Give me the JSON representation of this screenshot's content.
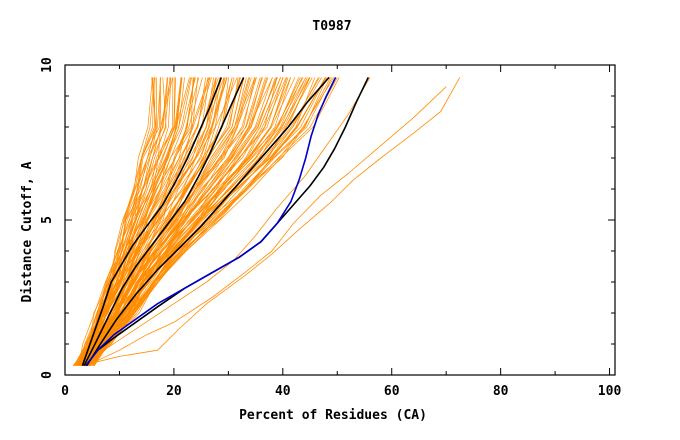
{
  "chart_data": {
    "type": "line",
    "title": "T0987",
    "xlabel": "Percent of Residues (CA)",
    "ylabel": "Distance Cutoff, A",
    "xlim": [
      0,
      101
    ],
    "ylim": [
      0,
      10
    ],
    "x_ticks": [
      "0",
      "20",
      "40",
      "60",
      "80",
      "100"
    ],
    "x_tick_values": [
      0,
      20,
      40,
      60,
      80,
      100
    ],
    "y_ticks": [
      "0",
      "5",
      "10"
    ],
    "y_tick_values": [
      0,
      5,
      10
    ],
    "grid": false,
    "legend": "none",
    "background_band": {
      "color": "#ff8c00",
      "count": 120,
      "description_free": true,
      "base_curve": {
        "y": [
          0.3,
          1,
          2,
          3,
          4,
          5,
          6,
          7,
          8,
          9.6
        ],
        "x": [
          2,
          4,
          6,
          8,
          9.5,
          11,
          12.5,
          14,
          15.5,
          16
        ]
      },
      "outer_curve": {
        "y": [
          0.3,
          1,
          2,
          3,
          4,
          5,
          6,
          7,
          8,
          9.6
        ],
        "x": [
          5,
          8,
          13,
          17,
          22,
          28,
          34,
          40,
          45,
          50
        ]
      }
    },
    "series": [
      {
        "color": "#ff8c00",
        "width": 0.8,
        "x": [
          3,
          10,
          17,
          21,
          26,
          33,
          38,
          43,
          49,
          53,
          58,
          64,
          69,
          72.5
        ],
        "y": [
          0.3,
          0.6,
          0.8,
          1.5,
          2.3,
          3.2,
          3.9,
          4.7,
          5.6,
          6.3,
          7.0,
          7.8,
          8.5,
          9.6
        ]
      },
      {
        "color": "#ff8c00",
        "width": 0.8,
        "x": [
          4,
          10,
          15,
          20,
          27,
          33,
          38,
          42,
          47,
          52,
          58,
          64,
          70
        ],
        "y": [
          0.3,
          0.8,
          1.3,
          1.7,
          2.5,
          3.3,
          4.0,
          4.9,
          5.8,
          6.5,
          7.4,
          8.3,
          9.3
        ]
      },
      {
        "color": "#ff8c00",
        "width": 0.8,
        "x": [
          3.5,
          8,
          14,
          20,
          26,
          31,
          35,
          39,
          44,
          48,
          52,
          56
        ],
        "y": [
          0.3,
          0.9,
          1.6,
          2.3,
          3.0,
          3.7,
          4.5,
          5.4,
          6.4,
          7.4,
          8.4,
          9.6
        ]
      },
      {
        "color": "#000000",
        "width": 1.6,
        "x": [
          3.2,
          5,
          7,
          8.5,
          10.5,
          12.5,
          15,
          18,
          20.5,
          22.5,
          24.5,
          26.5,
          28.7
        ],
        "y": [
          0.3,
          1.2,
          2.2,
          3.0,
          3.6,
          4.2,
          4.8,
          5.5,
          6.3,
          7.0,
          7.8,
          8.6,
          9.6
        ]
      },
      {
        "color": "#000000",
        "width": 1.6,
        "x": [
          3.5,
          5.5,
          8,
          10.5,
          13,
          16,
          19,
          22,
          24.5,
          26.5,
          28.5,
          30.5,
          32.8
        ],
        "y": [
          0.3,
          1.0,
          1.9,
          2.8,
          3.5,
          4.2,
          4.9,
          5.6,
          6.4,
          7.1,
          7.9,
          8.7,
          9.6
        ]
      },
      {
        "color": "#000000",
        "width": 1.6,
        "x": [
          4,
          6.5,
          9.5,
          13,
          17,
          21,
          25,
          29,
          33,
          37,
          41,
          44.5,
          48.5
        ],
        "y": [
          0.3,
          1.0,
          1.8,
          2.6,
          3.4,
          4.1,
          4.8,
          5.6,
          6.4,
          7.2,
          8.0,
          8.8,
          9.6
        ]
      },
      {
        "color": "#000000",
        "width": 1.6,
        "x": [
          3.8,
          6,
          9,
          13,
          17,
          22,
          27,
          32,
          36,
          39,
          42,
          45,
          47.5,
          49.5,
          51.5,
          53.5,
          55.7
        ],
        "y": [
          0.3,
          0.8,
          1.2,
          1.7,
          2.2,
          2.8,
          3.3,
          3.8,
          4.3,
          4.9,
          5.5,
          6.1,
          6.7,
          7.3,
          8.0,
          8.8,
          9.6
        ]
      },
      {
        "color": "#0000cd",
        "width": 1.6,
        "x": [
          3.8,
          6,
          9,
          13,
          17,
          22,
          27,
          32,
          36,
          39,
          41.5,
          43,
          44.2,
          45.2,
          46.5,
          48,
          49.7
        ],
        "y": [
          0.3,
          0.8,
          1.3,
          1.8,
          2.3,
          2.8,
          3.3,
          3.8,
          4.3,
          4.9,
          5.6,
          6.3,
          7.0,
          7.7,
          8.4,
          9.0,
          9.6
        ]
      }
    ]
  }
}
